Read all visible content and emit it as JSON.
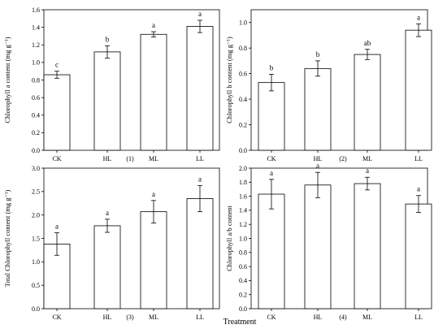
{
  "figure": {
    "x_axis_title": "Treatment",
    "colors": {
      "bar_fill": "#ffffff",
      "stroke": "#000000",
      "background": "#ffffff"
    }
  },
  "chart_data": [
    {
      "type": "bar",
      "panel_tag": "(1)",
      "categories": [
        "CK",
        "HL",
        "ML",
        "LL"
      ],
      "values": [
        0.86,
        1.12,
        1.32,
        1.41
      ],
      "errors": [
        0.04,
        0.07,
        0.03,
        0.07
      ],
      "significance": [
        "c",
        "b",
        "a",
        "a"
      ],
      "ylabel": "Chlorophyll a content (mg g⁻¹)",
      "ylim": [
        0,
        1.6
      ],
      "yticks": [
        0,
        0.2,
        0.4,
        0.6,
        0.8,
        1.0,
        1.2,
        1.4,
        1.6
      ],
      "ytick_labels": [
        "0.0",
        "0.2",
        "0.4",
        "0.6",
        "0.8",
        "1.0",
        "1.2",
        "1.4",
        "1.6"
      ]
    },
    {
      "type": "bar",
      "panel_tag": "(2)",
      "categories": [
        "CK",
        "HL",
        "ML",
        "LL"
      ],
      "values": [
        0.53,
        0.64,
        0.75,
        0.94
      ],
      "errors": [
        0.065,
        0.06,
        0.04,
        0.05
      ],
      "significance": [
        "b",
        "b",
        "ab",
        "a"
      ],
      "ylabel": "Chlorophyll b content (mg g⁻¹)",
      "ylim": [
        0,
        1.1
      ],
      "yticks": [
        0,
        0.2,
        0.4,
        0.6,
        0.8,
        1.0
      ],
      "ytick_labels": [
        "0.0",
        "0.2",
        "0.4",
        "0.6",
        "0.8",
        "1.0"
      ]
    },
    {
      "type": "bar",
      "panel_tag": "(3)",
      "categories": [
        "CK",
        "HL",
        "ML",
        "LL"
      ],
      "values": [
        1.38,
        1.77,
        2.07,
        2.35
      ],
      "errors": [
        0.24,
        0.14,
        0.24,
        0.28
      ],
      "significance": [
        "a",
        "a",
        "a",
        "a"
      ],
      "ylabel": "Total Chlorophyll content (mg g⁻¹)",
      "ylim": [
        0,
        3.0
      ],
      "yticks": [
        0,
        0.5,
        1.0,
        1.5,
        2.0,
        2.5,
        3.0
      ],
      "ytick_labels": [
        "0.0",
        "0.5",
        "1.0",
        "1.5",
        "2.0",
        "2.5",
        "3.0"
      ]
    },
    {
      "type": "bar",
      "panel_tag": "(4)",
      "categories": [
        "CK",
        "HL",
        "ML",
        "LL"
      ],
      "values": [
        1.63,
        1.76,
        1.78,
        1.49
      ],
      "errors": [
        0.21,
        0.18,
        0.09,
        0.12
      ],
      "significance": [
        "a",
        "a",
        "a",
        "a"
      ],
      "ylabel": "Chlorophyll a/b content",
      "ylim": [
        0,
        2.0
      ],
      "yticks": [
        0,
        0.2,
        0.4,
        0.6,
        0.8,
        1.0,
        1.2,
        1.4,
        1.6,
        1.8,
        2.0
      ],
      "ytick_labels": [
        "0.0",
        "0.2",
        "0.4",
        "0.6",
        "0.8",
        "1.0",
        "1.2",
        "1.4",
        "1.6",
        "1.8",
        "2.0"
      ]
    }
  ]
}
